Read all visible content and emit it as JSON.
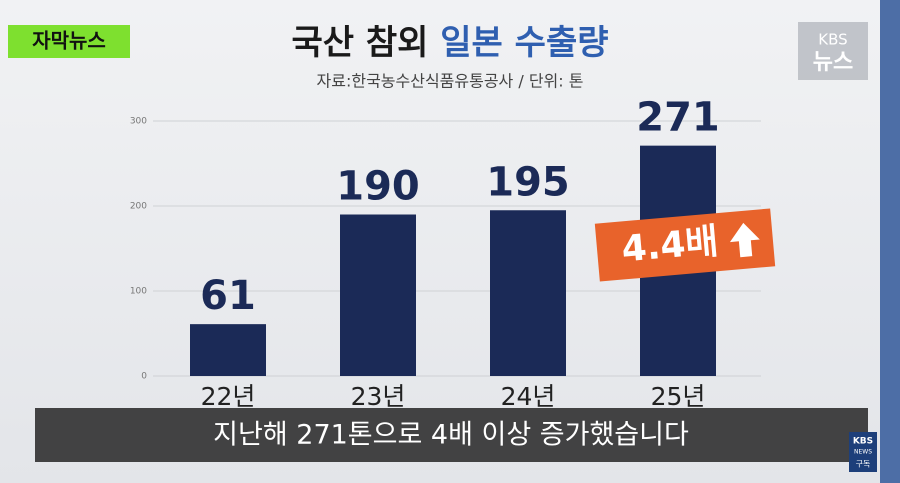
{
  "badge": "자막뉴스",
  "logo": {
    "top": "KBS",
    "bottom": "뉴스"
  },
  "caption": "지난해 271톤으로 4배 이상 증가했습니다",
  "corner_logo": {
    "top": "KBS",
    "middle": "NEWS",
    "bottom": "구독"
  },
  "chart_data": {
    "type": "bar",
    "title": [
      "국산 참외",
      "일본 수출량"
    ],
    "subtitle": "자료:한국농수산식품유통공사 / 단위: 톤",
    "annotation": "4.4배",
    "categories": [
      "22년",
      "23년",
      "24년",
      "25년"
    ],
    "values": [
      61,
      190,
      195,
      271
    ],
    "color": "#1b2a57",
    "ylim": [
      0,
      300
    ],
    "yticks": [
      0,
      100,
      200,
      300
    ],
    "grid": true
  }
}
